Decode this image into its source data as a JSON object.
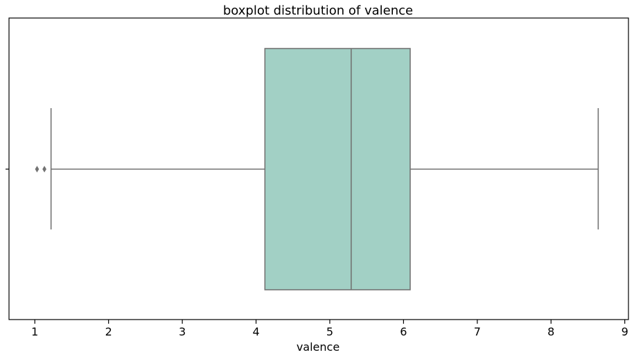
{
  "chart_data": {
    "type": "boxplot",
    "title": "boxplot distribution of valence",
    "xlabel": "valence",
    "ylabel": "",
    "orientation": "horizontal",
    "xlim": [
      0.65,
      9.05
    ],
    "xticks": [
      1,
      2,
      3,
      4,
      5,
      6,
      7,
      8,
      9
    ],
    "grid": false,
    "box": {
      "whisker_low": 1.22,
      "q1": 4.12,
      "median": 5.29,
      "q3": 6.09,
      "whisker_high": 8.64,
      "outliers": [
        1.03,
        1.13
      ]
    },
    "colors": {
      "box_fill": "#a2d0c5",
      "box_edge": "#737373",
      "axis": "#000000"
    }
  }
}
